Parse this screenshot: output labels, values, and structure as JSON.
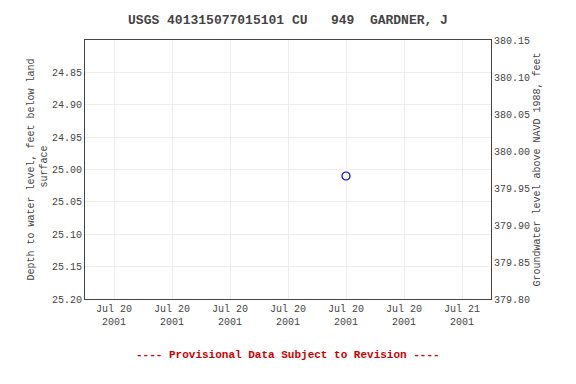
{
  "chart_data": {
    "type": "scatter",
    "title": "USGS 401315077015101 CU   949  GARDNER, J",
    "ylabel": "Depth to water level, feet below land\n surface",
    "y2label": "Groundwater level above NAVD 1988, feet",
    "categories": [
      "Jul 20\n2001",
      "Jul 20\n2001",
      "Jul 20\n2001",
      "Jul 20\n2001",
      "Jul 20\n2001",
      "Jul 20\n2001",
      "Jul 21\n2001"
    ],
    "values": [
      null,
      null,
      null,
      null,
      25.01,
      null,
      null
    ],
    "color": "#0000cc",
    "marker": "circle-open",
    "ylim": [
      25.2,
      24.8
    ],
    "yticks": [
      24.85,
      {
        "value": 24.9,
        "label": "24.90"
      },
      24.95,
      {
        "value": 25.0,
        "label": "25.00"
      },
      25.05,
      {
        "value": 25.1,
        "label": "25.10"
      },
      25.15,
      {
        "value": 25.2,
        "label": "25.20"
      }
    ],
    "y2lim": [
      379.8,
      380.15
    ],
    "y2ticks": [
      {
        "value": 379.8,
        "label": "379.80"
      },
      379.85,
      {
        "value": 379.9,
        "label": "379.90"
      },
      379.95,
      {
        "value": 380.0,
        "label": "380.00"
      },
      380.05,
      {
        "value": 380.1,
        "label": "380.10"
      },
      380.15
    ],
    "grid": true,
    "annotations": [
      {
        "text": "---- Provisional Data Subject to Revision ----",
        "color": "#cc0000"
      }
    ]
  }
}
